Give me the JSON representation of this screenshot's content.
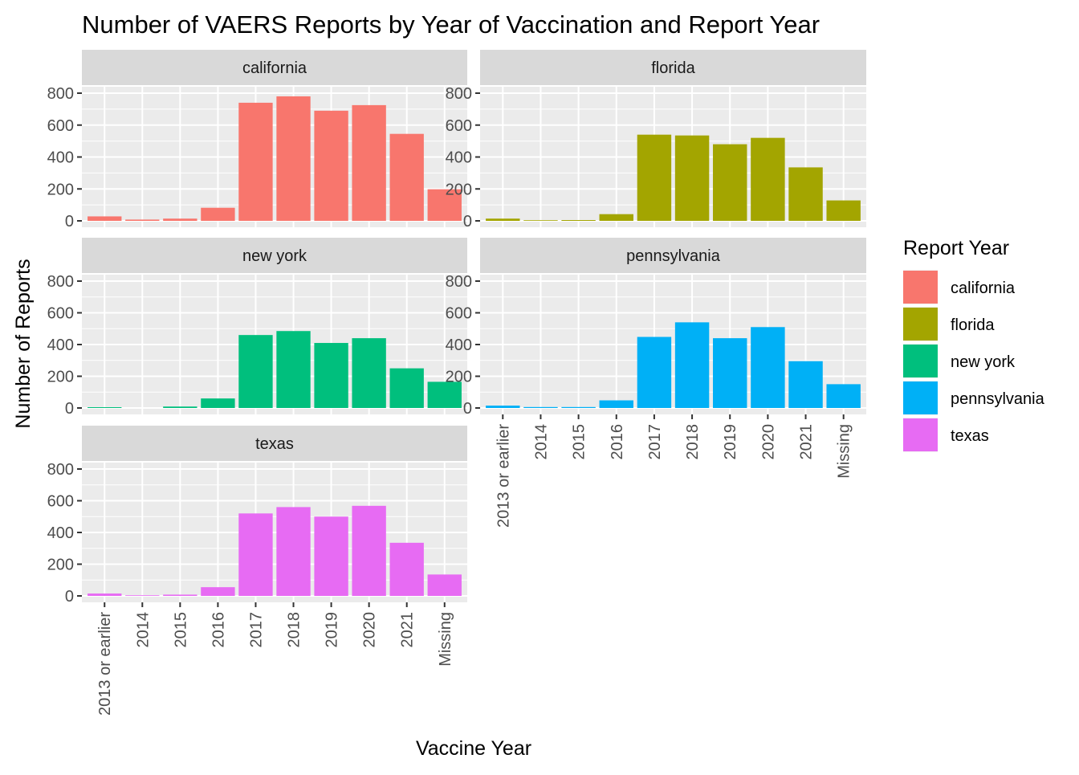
{
  "chart_data": {
    "type": "bar",
    "title": "Number of VAERS Reports by Year of Vaccination and Report Year",
    "xlabel": "Vaccine Year",
    "ylabel": "Number of Reports",
    "ylim": [
      0,
      800
    ],
    "y_ticks": [
      0,
      200,
      400,
      600,
      800
    ],
    "grid": true,
    "legend_title": "Report Year",
    "legend_position": "right",
    "categories": [
      "2013 or earlier",
      "2014",
      "2015",
      "2016",
      "2017",
      "2018",
      "2019",
      "2020",
      "2021",
      "Missing"
    ],
    "series": [
      {
        "name": "california",
        "color": "#F8766D",
        "values": [
          28,
          8,
          14,
          82,
          740,
          780,
          690,
          725,
          545,
          198
        ]
      },
      {
        "name": "florida",
        "color": "#A3A500",
        "values": [
          14,
          4,
          5,
          42,
          540,
          535,
          480,
          520,
          335,
          128
        ]
      },
      {
        "name": "new york",
        "color": "#00BF7D",
        "values": [
          5,
          0,
          9,
          60,
          460,
          485,
          410,
          440,
          250,
          165
        ]
      },
      {
        "name": "pennsylvania",
        "color": "#00B0F6",
        "values": [
          15,
          6,
          6,
          48,
          448,
          540,
          440,
          510,
          295,
          150
        ]
      },
      {
        "name": "texas",
        "color": "#E76BF3",
        "values": [
          15,
          4,
          8,
          55,
          520,
          560,
          500,
          568,
          335,
          135
        ]
      }
    ]
  }
}
